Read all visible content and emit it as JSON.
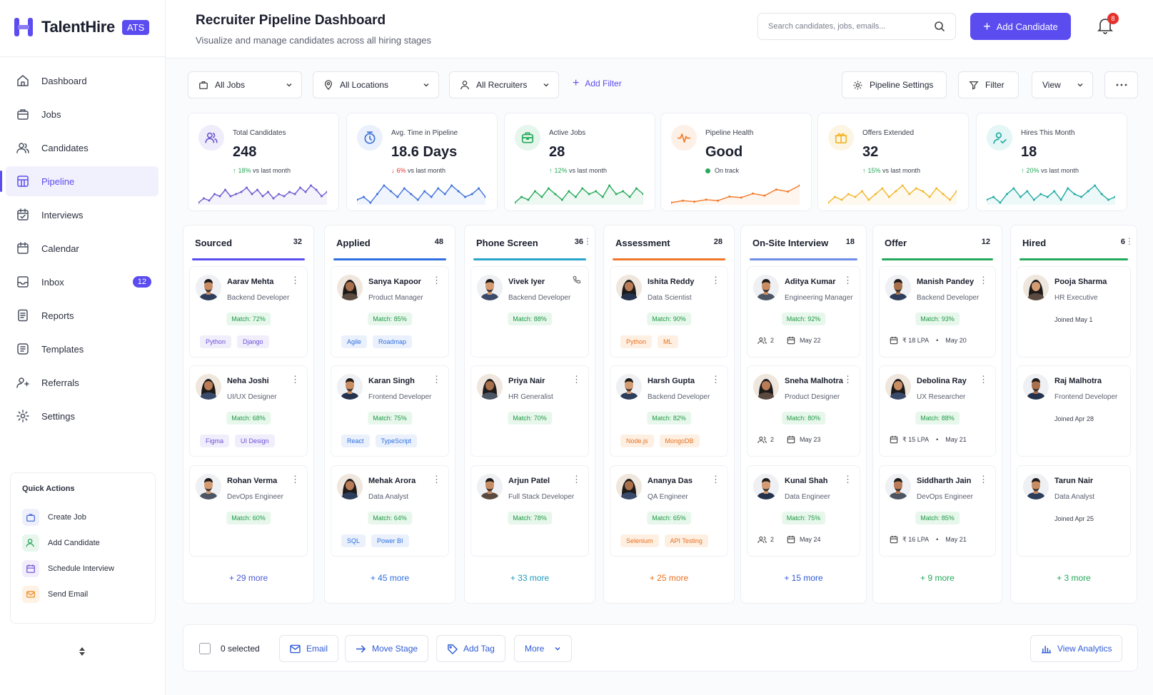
{
  "app": {
    "name": "TalentHire",
    "badge": "ATS"
  },
  "nav": [
    {
      "label": "Dashboard",
      "icon": "home-icon"
    },
    {
      "label": "Jobs",
      "icon": "briefcase-icon"
    },
    {
      "label": "Candidates",
      "icon": "users-icon"
    },
    {
      "label": "Pipeline",
      "icon": "pipeline-icon",
      "active": true
    },
    {
      "label": "Interviews",
      "icon": "calendar-check-icon"
    },
    {
      "label": "Calendar",
      "icon": "calendar-icon"
    },
    {
      "label": "Inbox",
      "icon": "inbox-icon",
      "badge": "12"
    },
    {
      "label": "Reports",
      "icon": "report-icon"
    },
    {
      "label": "Templates",
      "icon": "template-icon"
    },
    {
      "label": "Referrals",
      "icon": "referral-icon"
    },
    {
      "label": "Settings",
      "icon": "gear-icon"
    }
  ],
  "quick_actions": {
    "title": "Quick Actions",
    "items": [
      "Create Job",
      "Add Candidate",
      "Schedule Interview",
      "Send Email"
    ]
  },
  "header": {
    "title": "Recruiter Pipeline Dashboard",
    "subtitle": "Visualize and manage candidates across all hiring stages",
    "search_placeholder": "Search candidates, jobs, emails...",
    "add_button": "Add Candidate",
    "notifications": "8"
  },
  "filters": {
    "jobs": "All Jobs",
    "locations": "All Locations",
    "recruiters": "All Recruiters",
    "add_filter": "Add Filter",
    "pipeline_settings": "Pipeline Settings",
    "filter": "Filter",
    "view": "View"
  },
  "stats": [
    {
      "label": "Total Candidates",
      "value": "248",
      "trend": "18%",
      "trend_dir": "up",
      "trend_note": "vs last month",
      "color": "#6d5bd0",
      "bg": "#efedfb",
      "icon": "users-icon",
      "series": [
        4,
        6,
        5,
        8,
        7,
        10,
        7,
        8,
        9,
        11,
        8,
        10,
        7,
        9,
        6,
        8,
        7,
        9,
        8,
        11,
        9,
        12,
        10,
        7,
        9
      ]
    },
    {
      "label": "Avg. Time in Pipeline",
      "value": "18.6 Days",
      "trend": "6%",
      "trend_dir": "down",
      "trend_note": "vs last month",
      "color": "#3b6fd9",
      "bg": "#eaf1fc",
      "icon": "clock-icon",
      "series": [
        5,
        6,
        4,
        7,
        10,
        8,
        6,
        9,
        7,
        5,
        8,
        6,
        9,
        7,
        10,
        8,
        6,
        7,
        9,
        6
      ]
    },
    {
      "label": "Active Jobs",
      "value": "28",
      "trend": "12%",
      "trend_dir": "up",
      "trend_note": "vs last month",
      "color": "#25a95a",
      "bg": "#e6f6ec",
      "icon": "briefcase-icon",
      "series": [
        4,
        6,
        5,
        8,
        6,
        9,
        7,
        5,
        8,
        6,
        9,
        7,
        8,
        6,
        10,
        7,
        8,
        6,
        9,
        7
      ]
    },
    {
      "label": "Pipeline Health",
      "value": "Good",
      "trend": "On track",
      "trend_dir": "ok",
      "trend_note": "",
      "color": "#f07a2a",
      "bg": "#fdf0e6",
      "icon": "pulse-icon",
      "series": [
        3,
        5,
        4,
        6,
        5,
        9,
        8,
        12,
        10,
        16,
        14,
        20
      ]
    },
    {
      "label": "Offers Extended",
      "value": "32",
      "trend": "15%",
      "trend_dir": "up",
      "trend_note": "vs last month",
      "color": "#f2b52a",
      "bg": "#fdf5e3",
      "icon": "gift-icon",
      "series": [
        4,
        6,
        5,
        7,
        6,
        8,
        5,
        7,
        9,
        6,
        8,
        10,
        7,
        9,
        8,
        6,
        9,
        7,
        5,
        8
      ]
    },
    {
      "label": "Hires This Month",
      "value": "18",
      "trend": "20%",
      "trend_dir": "up",
      "trend_note": "vs last month",
      "color": "#1fa9a3",
      "bg": "#e4f6f5",
      "icon": "user-check-icon",
      "series": [
        5,
        6,
        4,
        7,
        9,
        6,
        8,
        5,
        7,
        6,
        8,
        5,
        9,
        7,
        6,
        8,
        10,
        7,
        5,
        6
      ]
    }
  ],
  "columns": [
    {
      "name": "Sourced",
      "count": "32",
      "color": "#5b4cf0",
      "more": "+ 29 more",
      "more_color": "#4a5ad6",
      "cards": [
        {
          "name": "Aarav Mehta",
          "role": "Backend Developer",
          "match": "Match: 72%",
          "tags": [
            "Python",
            "Django"
          ],
          "tag_style": "purple"
        },
        {
          "name": "Neha Joshi",
          "role": "UI/UX Designer",
          "match": "Match: 68%",
          "tags": [
            "Figma",
            "UI Design"
          ],
          "tag_style": "purple"
        },
        {
          "name": "Rohan Verma",
          "role": "DevOps Engineer",
          "match": "Match: 60%",
          "tags": []
        }
      ]
    },
    {
      "name": "Applied",
      "count": "48",
      "color": "#2f6fe0",
      "more": "+ 45 more",
      "more_color": "#2f6fe0",
      "cards": [
        {
          "name": "Sanya Kapoor",
          "role": "Product Manager",
          "match": "Match: 85%",
          "tags": [
            "Agile",
            "Roadmap"
          ],
          "tag_style": "blue"
        },
        {
          "name": "Karan Singh",
          "role": "Frontend Developer",
          "match": "Match: 75%",
          "tags": [
            "React",
            "TypeScript"
          ],
          "tag_style": "blue"
        },
        {
          "name": "Mehak Arora",
          "role": "Data Analyst",
          "match": "Match: 64%",
          "tags": [
            "SQL",
            "Power BI"
          ],
          "tag_style": "blue"
        }
      ]
    },
    {
      "name": "Phone Screen",
      "count": "36",
      "color": "#2aa5c9",
      "more": "+ 33 more",
      "more_color": "#1f9ab9",
      "cards": [
        {
          "name": "Vivek Iyer",
          "role": "Backend Developer",
          "match": "Match: 88%",
          "tags": [],
          "menu": "phone"
        },
        {
          "name": "Priya Nair",
          "role": "HR Generalist",
          "match": "Match: 70%",
          "tags": []
        },
        {
          "name": "Arjun Patel",
          "role": "Full Stack Developer",
          "match": "Match: 78%",
          "tags": []
        }
      ]
    },
    {
      "name": "Assessment",
      "count": "28",
      "color": "#f0782a",
      "more": "+ 25 more",
      "more_color": "#e8701f",
      "cards": [
        {
          "name": "Ishita Reddy",
          "role": "Data Scientist",
          "match": "Match: 90%",
          "tags": [
            "Python",
            "ML"
          ],
          "tag_style": "orange"
        },
        {
          "name": "Harsh Gupta",
          "role": "Backend Developer",
          "match": "Match: 82%",
          "tags": [
            "Node.js",
            "MongoDB"
          ],
          "tag_style": "orange"
        },
        {
          "name": "Ananya Das",
          "role": "QA Engineer",
          "match": "Match: 65%",
          "tags": [
            "Selenium",
            "API Testing"
          ],
          "tag_style": "orange"
        }
      ]
    },
    {
      "name": "On-Site Interview",
      "count": "18",
      "color": "#6f8ee8",
      "more": "+ 15 more",
      "more_color": "#2f5bd6",
      "cards": [
        {
          "name": "Aditya Kumar",
          "role": "Engineering Manager",
          "match": "Match: 92%",
          "meta_a": "2",
          "meta_b": "May 22",
          "meta_type": "interview"
        },
        {
          "name": "Sneha Malhotra",
          "role": "Product Designer",
          "match": "Match: 80%",
          "meta_a": "2",
          "meta_b": "May 23",
          "meta_type": "interview"
        },
        {
          "name": "Kunal Shah",
          "role": "Data Engineer",
          "match": "Match: 75%",
          "meta_a": "2",
          "meta_b": "May 24",
          "meta_type": "interview"
        }
      ]
    },
    {
      "name": "Offer",
      "count": "12",
      "color": "#25a95a",
      "more": "+ 9 more",
      "more_color": "#25a95a",
      "cards": [
        {
          "name": "Manish Pandey",
          "role": "Backend Developer",
          "match": "Match: 93%",
          "meta_a": "₹ 18 LPA",
          "meta_b": "May 20",
          "meta_type": "offer"
        },
        {
          "name": "Debolina Ray",
          "role": "UX Researcher",
          "match": "Match: 88%",
          "meta_a": "₹ 15 LPA",
          "meta_b": "May 21",
          "meta_type": "offer"
        },
        {
          "name": "Siddharth Jain",
          "role": "DevOps Engineer",
          "match": "Match: 85%",
          "meta_a": "₹ 16 LPA",
          "meta_b": "May 21",
          "meta_type": "offer"
        }
      ]
    },
    {
      "name": "Hired",
      "count": "6",
      "color": "#25a95a",
      "more": "+ 3 more",
      "more_color": "#25a95a",
      "cards": [
        {
          "name": "Pooja Sharma",
          "role": "HR Executive",
          "joined": "Joined May 1"
        },
        {
          "name": "Raj Malhotra",
          "role": "Frontend Developer",
          "joined": "Joined Apr 28"
        },
        {
          "name": "Tarun Nair",
          "role": "Data Analyst",
          "joined": "Joined Apr 25"
        }
      ]
    }
  ],
  "bottom": {
    "selected": "0 selected",
    "email": "Email",
    "move_stage": "Move Stage",
    "add_tag": "Add Tag",
    "more": "More",
    "analytics": "View Analytics"
  }
}
